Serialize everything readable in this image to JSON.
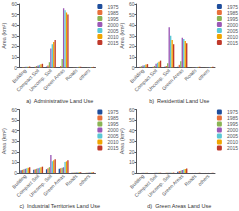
{
  "chart_data": [
    {
      "type": "bar",
      "xlabel": "a)  Administrative Land Use",
      "ylabel": "Area (km²)",
      "categories": [
        "Building",
        "Compact Soil",
        "Uncomp. Soil",
        "Green Areas",
        "Roads",
        "others"
      ],
      "series": [
        {
          "name": "1975",
          "color": "#1f4e9c",
          "values": [
            0.3,
            0.4,
            0.8,
            0.5,
            0.1,
            0.1
          ]
        },
        {
          "name": "1985",
          "color": "#e8703a",
          "values": [
            0.4,
            0.8,
            2.0,
            1.5,
            0.2,
            0.1
          ]
        },
        {
          "name": "1995",
          "color": "#8ab454",
          "values": [
            0.5,
            1.5,
            5.0,
            8.0,
            0.3,
            0.2
          ]
        },
        {
          "name": "2000",
          "color": "#9b59b6",
          "values": [
            0.6,
            2.0,
            18.0,
            56.0,
            0.4,
            0.3
          ]
        },
        {
          "name": "2005",
          "color": "#5bc8d5",
          "values": [
            0.7,
            2.5,
            22.0,
            54.0,
            0.5,
            0.4
          ]
        },
        {
          "name": "2010",
          "color": "#f0a500",
          "values": [
            0.8,
            3.0,
            24.0,
            52.0,
            0.6,
            0.5
          ]
        },
        {
          "name": "2015",
          "color": "#c0392b",
          "values": [
            0.9,
            3.5,
            26.0,
            50.0,
            0.7,
            0.6
          ]
        }
      ],
      "ylim": [
        0,
        60
      ],
      "yticks": [
        0,
        10,
        20,
        30,
        40,
        50,
        60
      ],
      "grid": false,
      "legend": "upper right"
    },
    {
      "type": "bar",
      "xlabel": "b)  Residential Land Use",
      "ylabel": "Area (km²)",
      "categories": [
        "Building",
        "Compact Soil",
        "Uncomp. Soil",
        "Green Areas",
        "Roads",
        "others"
      ],
      "series": [
        {
          "name": "1975",
          "color": "#1f4e9c",
          "values": [
            0.3,
            0.4,
            0.6,
            0.8,
            0.1,
            0.1
          ]
        },
        {
          "name": "1985",
          "color": "#e8703a",
          "values": [
            0.8,
            0.8,
            1.5,
            2.5,
            0.2,
            0.1
          ]
        },
        {
          "name": "1995",
          "color": "#8ab454",
          "values": [
            1.2,
            1.5,
            4.0,
            6.0,
            0.3,
            0.2
          ]
        },
        {
          "name": "2000",
          "color": "#9b59b6",
          "values": [
            1.8,
            3.5,
            38.0,
            28.0,
            0.4,
            0.3
          ]
        },
        {
          "name": "2005",
          "color": "#5bc8d5",
          "values": [
            2.2,
            4.5,
            30.0,
            27.0,
            0.5,
            0.4
          ]
        },
        {
          "name": "2010",
          "color": "#f0a500",
          "values": [
            2.8,
            5.5,
            26.0,
            25.0,
            0.6,
            0.5
          ]
        },
        {
          "name": "2015",
          "color": "#c0392b",
          "values": [
            3.2,
            6.5,
            22.0,
            23.0,
            0.7,
            0.6
          ]
        }
      ],
      "ylim": [
        0,
        60
      ],
      "yticks": [
        0,
        10,
        20,
        30,
        40,
        50,
        60
      ],
      "grid": false,
      "legend": "upper right"
    },
    {
      "type": "bar",
      "xlabel": "c)  Industrial Territories Land Use",
      "ylabel": "Area (km²)",
      "categories": [
        "Building",
        "Compact Soil",
        "Uncomp. Soil",
        "Green Areas",
        "Roads",
        "others"
      ],
      "series": [
        {
          "name": "1975",
          "color": "#1f4e9c",
          "values": [
            2.5,
            3.0,
            3.5,
            4.0,
            0.2,
            0.1
          ]
        },
        {
          "name": "1985",
          "color": "#e8703a",
          "values": [
            3.0,
            3.5,
            4.5,
            4.5,
            0.3,
            0.2
          ]
        },
        {
          "name": "1995",
          "color": "#8ab454",
          "values": [
            3.5,
            4.0,
            5.5,
            5.0,
            0.4,
            0.3
          ]
        },
        {
          "name": "2000",
          "color": "#9b59b6",
          "values": [
            4.0,
            4.5,
            17.0,
            5.5,
            0.5,
            0.4
          ]
        },
        {
          "name": "2005",
          "color": "#5bc8d5",
          "values": [
            4.5,
            5.0,
            11.0,
            10.5,
            0.6,
            0.5
          ]
        },
        {
          "name": "2010",
          "color": "#f0a500",
          "values": [
            5.0,
            5.5,
            12.0,
            11.0,
            0.7,
            0.6
          ]
        },
        {
          "name": "2015",
          "color": "#c0392b",
          "values": [
            5.5,
            6.0,
            13.0,
            12.0,
            0.8,
            0.7
          ]
        }
      ],
      "ylim": [
        0,
        60
      ],
      "yticks": [
        0,
        10,
        20,
        30,
        40,
        50,
        60
      ],
      "grid": false,
      "legend": "upper right"
    },
    {
      "type": "bar",
      "xlabel": "d)  Green Areas Land Use",
      "ylabel": "Area (km²)",
      "categories": [
        "Building",
        "Compact Soil",
        "Uncomp. Soil",
        "Green Areas",
        "Roads",
        "others"
      ],
      "series": [
        {
          "name": "1975",
          "color": "#1f4e9c",
          "values": [
            0.05,
            0.05,
            0.1,
            1.2,
            0.05,
            0.05
          ]
        },
        {
          "name": "1985",
          "color": "#e8703a",
          "values": [
            0.08,
            0.08,
            0.15,
            1.8,
            0.05,
            0.05
          ]
        },
        {
          "name": "1995",
          "color": "#8ab454",
          "values": [
            0.1,
            0.1,
            0.2,
            2.2,
            0.08,
            0.08
          ]
        },
        {
          "name": "2000",
          "color": "#9b59b6",
          "values": [
            0.12,
            0.15,
            0.25,
            2.8,
            0.1,
            0.08
          ]
        },
        {
          "name": "2005",
          "color": "#5bc8d5",
          "values": [
            0.15,
            0.18,
            0.3,
            3.2,
            0.1,
            0.08
          ]
        },
        {
          "name": "2010",
          "color": "#f0a500",
          "values": [
            0.18,
            0.2,
            0.35,
            3.8,
            0.12,
            0.1
          ]
        },
        {
          "name": "2015",
          "color": "#c0392b",
          "values": [
            0.2,
            0.25,
            0.4,
            4.2,
            0.15,
            0.12
          ]
        }
      ],
      "ylim": [
        0,
        60
      ],
      "yticks": [
        0,
        10,
        20,
        30,
        40,
        50,
        60
      ],
      "grid": false,
      "legend": "upper right"
    }
  ]
}
